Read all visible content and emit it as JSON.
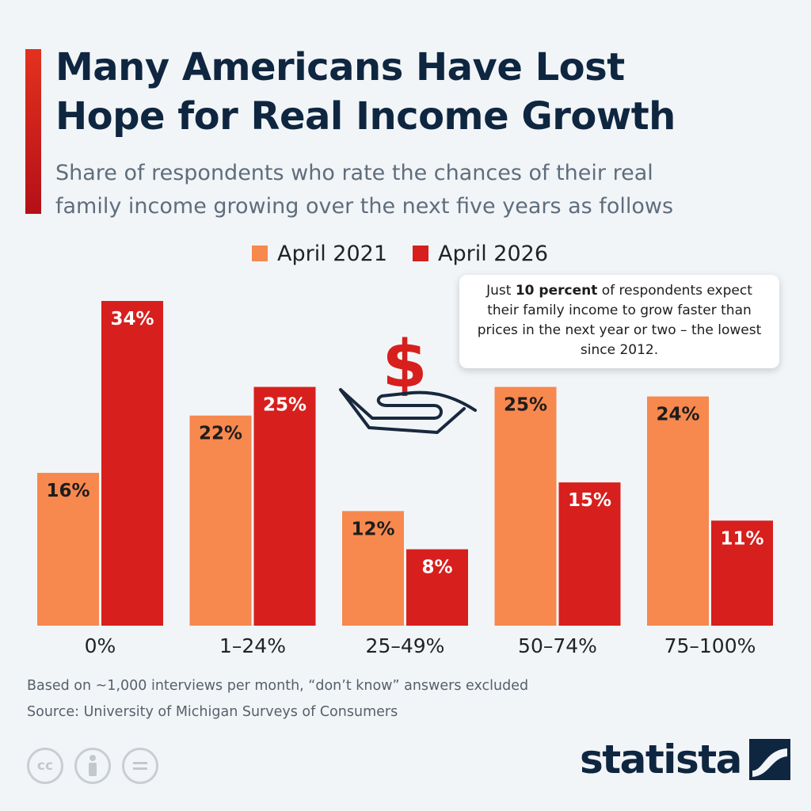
{
  "header": {
    "title_line1": "Many Americans Have Lost",
    "title_line2": "Hope for Real Income Growth",
    "subtitle_line1": "Share of respondents who rate the chances of their real",
    "subtitle_line2": "family income growing over the next five years as follows"
  },
  "colors": {
    "accent": "#d91e18",
    "april_2021": "#f7884e",
    "april_2026": "#d71f1d",
    "title": "#0f2640"
  },
  "callout": {
    "pre": "Just ",
    "bold": "10 percent",
    "post": " of respondents expect their family income to grow faster than prices in the next year or two – the lowest since 2012."
  },
  "chart_data": {
    "type": "bar",
    "title": "",
    "xlabel": "",
    "ylabel": "",
    "categories": [
      "0%",
      "1–24%",
      "25–49%",
      "50–74%",
      "75–100%"
    ],
    "series": [
      {
        "name": "April 2021",
        "values": [
          16,
          22,
          12,
          25,
          24
        ],
        "labels": [
          "16%",
          "22%",
          "12%",
          "25%",
          "24%"
        ]
      },
      {
        "name": "April 2026",
        "values": [
          34,
          25,
          8,
          15,
          11
        ],
        "labels": [
          "34%",
          "25%",
          "8%",
          "15%",
          "11%"
        ]
      }
    ],
    "ylim": [
      0,
      34
    ],
    "grid": false,
    "legend": "top-center"
  },
  "footer": {
    "note": "Based on ~1,000 interviews per month, “don’t know” answers excluded",
    "source": "Source: University of Michigan Surveys of Consumers",
    "cc_icons": [
      "cc-icon",
      "attribution-icon",
      "no-derivatives-icon"
    ],
    "brand": "statista"
  }
}
